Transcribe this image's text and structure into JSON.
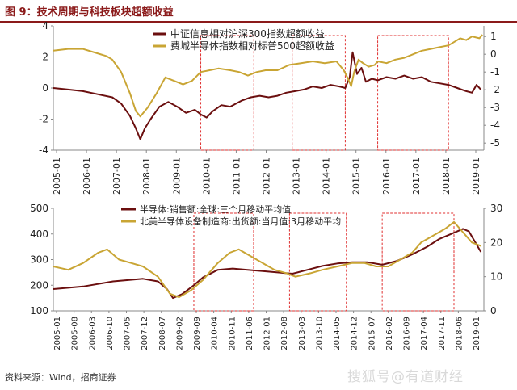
{
  "figure": {
    "title": "图 9：技术周期与科技板块超额收益",
    "source": "资料来源：Wind，招商证券",
    "watermark": "搜狐号@有道财经"
  },
  "colors": {
    "dark": "#6b0f0f",
    "gold": "#c9a534",
    "highlight": "#e03030",
    "title": "#8b1a1a"
  },
  "chart_data": [
    {
      "type": "line",
      "x_ticks": [
        "2005-01",
        "2006-01",
        "2007-01",
        "2008-01",
        "2009-01",
        "2010-01",
        "2011-01",
        "2012-01",
        "2013-01",
        "2014-01",
        "2015-01",
        "2016-01",
        "2017-01",
        "2018-01",
        "2019-01"
      ],
      "xlim": [
        2005.0,
        2019.6
      ],
      "left_axis": {
        "ticks": [
          "4",
          "2",
          "0",
          "-2",
          "-4"
        ],
        "ylim": [
          -4,
          4
        ]
      },
      "right_axis": {
        "ticks": [
          "1",
          "0",
          "-1",
          "-2",
          "-3",
          "-4",
          "-5"
        ],
        "ylim": [
          -5.4,
          1.6
        ]
      },
      "highlight_periods": [
        [
          2010.0,
          2011.8
        ],
        [
          2013.1,
          2014.9
        ],
        [
          2016.0,
          2018.4
        ]
      ],
      "series": [
        {
          "name": "中证信息相对沪深300指数超额收益",
          "axis": "left",
          "points": [
            [
              2005.0,
              0.0
            ],
            [
              2005.5,
              -0.1
            ],
            [
              2006.0,
              -0.2
            ],
            [
              2006.5,
              -0.4
            ],
            [
              2007.0,
              -0.6
            ],
            [
              2007.3,
              -1.0
            ],
            [
              2007.6,
              -1.8
            ],
            [
              2007.8,
              -2.6
            ],
            [
              2007.95,
              -3.3
            ],
            [
              2008.1,
              -2.6
            ],
            [
              2008.3,
              -2.0
            ],
            [
              2008.6,
              -1.2
            ],
            [
              2008.9,
              -0.9
            ],
            [
              2009.2,
              -1.2
            ],
            [
              2009.5,
              -1.6
            ],
            [
              2009.8,
              -1.4
            ],
            [
              2010.0,
              -1.7
            ],
            [
              2010.2,
              -1.9
            ],
            [
              2010.4,
              -1.5
            ],
            [
              2010.7,
              -1.1
            ],
            [
              2011.0,
              -1.2
            ],
            [
              2011.4,
              -0.8
            ],
            [
              2011.7,
              -0.6
            ],
            [
              2012.0,
              -0.5
            ],
            [
              2012.3,
              -0.6
            ],
            [
              2012.6,
              -0.5
            ],
            [
              2012.9,
              -0.3
            ],
            [
              2013.2,
              -0.2
            ],
            [
              2013.5,
              -0.1
            ],
            [
              2013.8,
              0.1
            ],
            [
              2014.1,
              0.0
            ],
            [
              2014.4,
              0.2
            ],
            [
              2014.7,
              0.1
            ],
            [
              2014.9,
              0.0
            ],
            [
              2015.05,
              0.7
            ],
            [
              2015.15,
              2.3
            ],
            [
              2015.3,
              0.9
            ],
            [
              2015.45,
              1.3
            ],
            [
              2015.6,
              0.4
            ],
            [
              2015.8,
              0.6
            ],
            [
              2016.0,
              0.5
            ],
            [
              2016.3,
              0.7
            ],
            [
              2016.6,
              0.6
            ],
            [
              2016.9,
              0.8
            ],
            [
              2017.2,
              0.6
            ],
            [
              2017.5,
              0.7
            ],
            [
              2017.8,
              0.4
            ],
            [
              2018.1,
              0.3
            ],
            [
              2018.4,
              0.2
            ],
            [
              2018.7,
              0.0
            ],
            [
              2019.0,
              -0.2
            ],
            [
              2019.2,
              -0.3
            ],
            [
              2019.35,
              0.2
            ],
            [
              2019.5,
              -0.1
            ]
          ]
        },
        {
          "name": "费城半导体指数相对标普500超额收益",
          "axis": "right",
          "points": [
            [
              2005.0,
              0.2
            ],
            [
              2005.5,
              0.3
            ],
            [
              2006.0,
              0.3
            ],
            [
              2006.4,
              0.1
            ],
            [
              2006.8,
              -0.1
            ],
            [
              2007.0,
              -0.3
            ],
            [
              2007.3,
              -1.0
            ],
            [
              2007.6,
              -2.2
            ],
            [
              2007.8,
              -3.2
            ],
            [
              2007.95,
              -3.5
            ],
            [
              2008.2,
              -3.0
            ],
            [
              2008.5,
              -2.2
            ],
            [
              2008.8,
              -1.3
            ],
            [
              2009.1,
              -1.5
            ],
            [
              2009.4,
              -1.7
            ],
            [
              2009.7,
              -1.5
            ],
            [
              2010.0,
              -1.0
            ],
            [
              2010.3,
              -0.9
            ],
            [
              2010.6,
              -0.8
            ],
            [
              2011.0,
              -0.9
            ],
            [
              2011.3,
              -1.0
            ],
            [
              2011.6,
              -1.2
            ],
            [
              2011.9,
              -1.0
            ],
            [
              2012.2,
              -0.9
            ],
            [
              2012.6,
              -0.9
            ],
            [
              2013.0,
              -0.6
            ],
            [
              2013.4,
              -0.5
            ],
            [
              2013.8,
              -0.4
            ],
            [
              2014.2,
              -0.5
            ],
            [
              2014.6,
              -0.4
            ],
            [
              2014.85,
              -0.9
            ],
            [
              2015.0,
              -1.4
            ],
            [
              2015.1,
              -1.8
            ],
            [
              2015.2,
              -1.0
            ],
            [
              2015.35,
              -0.3
            ],
            [
              2015.5,
              -0.5
            ],
            [
              2015.7,
              -0.7
            ],
            [
              2015.9,
              -0.6
            ],
            [
              2016.0,
              -0.4
            ],
            [
              2016.3,
              -0.5
            ],
            [
              2016.6,
              -0.3
            ],
            [
              2016.9,
              -0.2
            ],
            [
              2017.2,
              0.0
            ],
            [
              2017.5,
              0.2
            ],
            [
              2017.8,
              0.3
            ],
            [
              2018.1,
              0.4
            ],
            [
              2018.4,
              0.5
            ],
            [
              2018.6,
              0.7
            ],
            [
              2018.8,
              0.9
            ],
            [
              2019.0,
              0.8
            ],
            [
              2019.2,
              1.0
            ],
            [
              2019.45,
              0.9
            ],
            [
              2019.55,
              1.1
            ]
          ]
        }
      ]
    },
    {
      "type": "line",
      "x_ticks": [
        "2005-01",
        "2005-08",
        "2006-03",
        "2006-10",
        "2007-05",
        "2007-12",
        "2008-07",
        "2009-02",
        "2009-09",
        "2010-04",
        "2010-11",
        "2011-06",
        "2012-01",
        "2012-08",
        "2013-03",
        "2013-10",
        "2014-05",
        "2014-12",
        "2015-07",
        "2016-02",
        "2016-09",
        "2017-04",
        "2017-11",
        "2018-06",
        "2019-01"
      ],
      "xlim": [
        2005.0,
        2019.4
      ],
      "left_axis": {
        "ticks": [
          "500",
          "400",
          "300",
          "200",
          "100"
        ],
        "ylim": [
          100,
          500
        ]
      },
      "right_axis": {
        "ticks": [
          "30",
          "20",
          "10",
          "0"
        ],
        "ylim": [
          0,
          30
        ]
      },
      "highlight_periods": [
        [
          2009.7,
          2011.7
        ],
        [
          2012.9,
          2014.8
        ],
        [
          2016.0,
          2018.4
        ]
      ],
      "series": [
        {
          "name": "半导体:销售额:全球:三个月移动平均值",
          "axis": "left",
          "points": [
            [
              2005.0,
              185
            ],
            [
              2005.5,
              190
            ],
            [
              2006.0,
              195
            ],
            [
              2006.5,
              205
            ],
            [
              2007.0,
              215
            ],
            [
              2007.5,
              220
            ],
            [
              2008.0,
              225
            ],
            [
              2008.5,
              215
            ],
            [
              2008.8,
              185
            ],
            [
              2009.0,
              150
            ],
            [
              2009.3,
              165
            ],
            [
              2009.7,
              200
            ],
            [
              2010.0,
              230
            ],
            [
              2010.5,
              260
            ],
            [
              2011.0,
              265
            ],
            [
              2011.5,
              260
            ],
            [
              2012.0,
              255
            ],
            [
              2012.5,
              250
            ],
            [
              2013.0,
              245
            ],
            [
              2013.5,
              260
            ],
            [
              2014.0,
              275
            ],
            [
              2014.5,
              285
            ],
            [
              2015.0,
              290
            ],
            [
              2015.5,
              290
            ],
            [
              2016.0,
              280
            ],
            [
              2016.5,
              295
            ],
            [
              2017.0,
              320
            ],
            [
              2017.5,
              350
            ],
            [
              2017.9,
              380
            ],
            [
              2018.3,
              400
            ],
            [
              2018.7,
              420
            ],
            [
              2018.9,
              410
            ],
            [
              2019.1,
              370
            ],
            [
              2019.3,
              330
            ]
          ]
        },
        {
          "name": "北美半导体设备制造商:出货额:当月值:3月移动平均",
          "axis": "right",
          "points": [
            [
              2005.0,
              13
            ],
            [
              2005.5,
              12
            ],
            [
              2006.0,
              14
            ],
            [
              2006.5,
              17
            ],
            [
              2006.8,
              18
            ],
            [
              2007.2,
              15
            ],
            [
              2007.6,
              14
            ],
            [
              2008.0,
              13
            ],
            [
              2008.5,
              10
            ],
            [
              2008.9,
              5
            ],
            [
              2009.2,
              4
            ],
            [
              2009.6,
              6
            ],
            [
              2010.0,
              9
            ],
            [
              2010.5,
              14
            ],
            [
              2010.9,
              17
            ],
            [
              2011.2,
              18
            ],
            [
              2011.6,
              16
            ],
            [
              2012.0,
              14
            ],
            [
              2012.4,
              12
            ],
            [
              2012.8,
              11
            ],
            [
              2013.1,
              10
            ],
            [
              2013.6,
              11
            ],
            [
              2014.0,
              12
            ],
            [
              2014.5,
              13
            ],
            [
              2015.0,
              14
            ],
            [
              2015.4,
              14
            ],
            [
              2015.8,
              13
            ],
            [
              2016.2,
              13
            ],
            [
              2016.6,
              15
            ],
            [
              2017.0,
              17
            ],
            [
              2017.3,
              20
            ],
            [
              2017.7,
              22
            ],
            [
              2018.1,
              24
            ],
            [
              2018.4,
              26
            ],
            [
              2018.7,
              23
            ],
            [
              2019.0,
              20
            ],
            [
              2019.3,
              19
            ]
          ]
        }
      ]
    }
  ]
}
